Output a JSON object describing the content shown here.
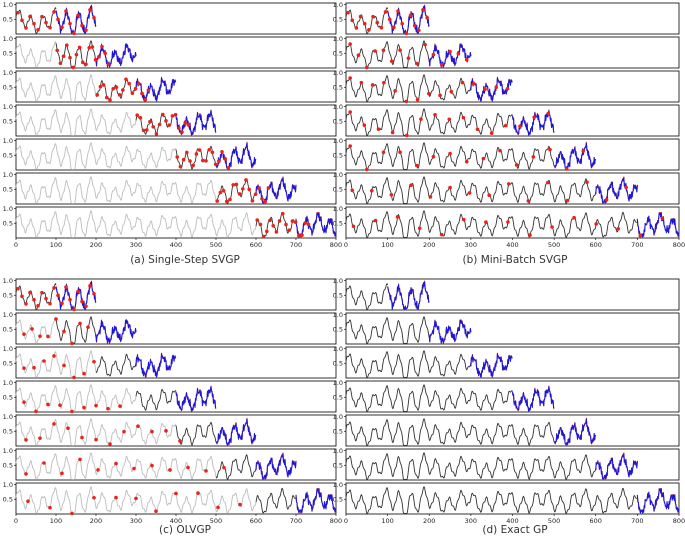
{
  "figure": {
    "captions": [
      "(a) Single-Step SVGP",
      "(b) Mini-Batch SVGP",
      "(c) OLVGP",
      "(d) Exact GP"
    ]
  },
  "colors": {
    "history": "#bdbdbd",
    "window": "#333333",
    "prediction": "#1a1adb",
    "inducing": "#e8231a",
    "frame": "#000000"
  },
  "chart_data": [
    {
      "type": "line",
      "title": "(a) Single-Step SVGP",
      "xticks": [
        "0",
        "100",
        "200",
        "300",
        "400",
        "500",
        "600",
        "700",
        "800"
      ],
      "yticks": [
        "0.5",
        "1.0"
      ],
      "xlim": [
        0,
        800
      ],
      "ylim": [
        0.0,
        1.05
      ],
      "grid": false,
      "series_legend": {
        "history": "light gray",
        "window": "dark gray",
        "prediction": "blue",
        "inducing": "red dots"
      },
      "rows": [
        {
          "shown_end": 200,
          "window_start": 0,
          "dots": [
            5,
            15,
            25,
            35,
            45,
            55,
            65,
            75,
            85,
            95,
            105,
            115,
            125,
            135,
            145,
            155,
            165,
            175,
            185,
            195
          ]
        },
        {
          "shown_end": 300,
          "window_start": 100,
          "dots": [
            103,
            111,
            119,
            127,
            135,
            143,
            151,
            159,
            167,
            175,
            183,
            191,
            199,
            207,
            215,
            223,
            231
          ]
        },
        {
          "shown_end": 400,
          "window_start": 200,
          "dots": [
            203,
            211,
            219,
            227,
            235,
            243,
            251,
            259,
            267,
            275,
            283,
            291,
            299,
            307,
            315,
            323,
            331
          ]
        },
        {
          "shown_end": 500,
          "window_start": 300,
          "dots": [
            303,
            311,
            319,
            327,
            335,
            343,
            351,
            359,
            367,
            375,
            383,
            391,
            399,
            407,
            415,
            423,
            431
          ]
        },
        {
          "shown_end": 600,
          "window_start": 400,
          "dots": [
            403,
            411,
            419,
            427,
            435,
            443,
            451,
            459,
            467,
            475,
            483,
            491,
            499,
            507,
            515,
            523,
            531
          ]
        },
        {
          "shown_end": 700,
          "window_start": 500,
          "dots": [
            503,
            511,
            519,
            527,
            535,
            543,
            551,
            559,
            567,
            575,
            583,
            591,
            599,
            607,
            615,
            623,
            631
          ]
        },
        {
          "shown_end": 800,
          "window_start": 600,
          "dots": [
            603,
            611,
            619,
            627,
            635,
            643,
            651,
            659,
            667,
            675,
            683,
            691,
            699,
            707,
            715,
            723,
            731
          ]
        }
      ]
    },
    {
      "type": "line",
      "title": "(b) Mini-Batch SVGP",
      "xticks": [
        "0",
        "100",
        "200",
        "300",
        "400",
        "500",
        "600",
        "700",
        "800"
      ],
      "yticks": [
        "0.5",
        "1.0"
      ],
      "xlim": [
        0,
        800
      ],
      "ylim": [
        0.0,
        1.05
      ],
      "grid": false,
      "rows": [
        {
          "shown_end": 200,
          "window_start": 0,
          "dots": [
            5,
            15,
            25,
            35,
            45,
            55,
            65,
            75,
            85,
            95,
            105,
            115,
            125,
            135,
            145,
            155,
            165,
            175,
            185,
            195
          ]
        },
        {
          "shown_end": 300,
          "window_start": 0,
          "dots": [
            10,
            30,
            50,
            70,
            90,
            110,
            130,
            150,
            170,
            190,
            210,
            230,
            250,
            270,
            290
          ]
        },
        {
          "shown_end": 400,
          "window_start": 0,
          "dots": [
            10,
            37,
            64,
            91,
            118,
            145,
            172,
            199,
            226,
            253,
            280,
            307,
            334,
            361,
            388
          ]
        },
        {
          "shown_end": 500,
          "window_start": 0,
          "dots": [
            10,
            44,
            78,
            112,
            146,
            180,
            214,
            248,
            282,
            316,
            350,
            384,
            418,
            452,
            486
          ]
        },
        {
          "shown_end": 600,
          "window_start": 0,
          "dots": [
            10,
            50,
            90,
            130,
            170,
            210,
            250,
            290,
            330,
            370,
            410,
            450,
            490,
            530,
            570
          ]
        },
        {
          "shown_end": 700,
          "window_start": 0,
          "dots": [
            15,
            62,
            109,
            156,
            203,
            250,
            297,
            344,
            391,
            438,
            485,
            532,
            579,
            626,
            673
          ]
        },
        {
          "shown_end": 800,
          "window_start": 0,
          "dots": [
            18,
            71,
            124,
            177,
            230,
            283,
            336,
            389,
            442,
            495,
            548,
            601,
            654,
            707,
            760
          ]
        }
      ]
    },
    {
      "type": "line",
      "title": "(c) OLVGP",
      "xticks": [
        "0",
        "100",
        "200",
        "300",
        "400",
        "500",
        "600",
        "700",
        "800"
      ],
      "yticks": [
        "0.5",
        "1.0"
      ],
      "xlim": [
        0,
        800
      ],
      "ylim": [
        0.0,
        1.05
      ],
      "grid": false,
      "rows": [
        {
          "shown_end": 200,
          "window_start": 0,
          "dots": [
            5,
            15,
            25,
            35,
            45,
            55,
            65,
            75,
            85,
            95,
            105,
            115,
            125,
            135,
            145,
            155,
            165,
            175,
            185,
            195
          ]
        },
        {
          "shown_end": 300,
          "window_start": 100,
          "dots": [
            20,
            40,
            60,
            80,
            100,
            120,
            140,
            160,
            180
          ]
        },
        {
          "shown_end": 400,
          "window_start": 200,
          "dots": [
            20,
            45,
            70,
            95,
            120,
            145,
            170,
            195
          ]
        },
        {
          "shown_end": 500,
          "window_start": 300,
          "dots": [
            20,
            50,
            80,
            110,
            140,
            170,
            200,
            230,
            260
          ]
        },
        {
          "shown_end": 600,
          "window_start": 400,
          "dots": [
            25,
            60,
            95,
            130,
            165,
            200,
            235,
            270,
            305,
            340,
            375,
            410
          ]
        },
        {
          "shown_end": 700,
          "window_start": 500,
          "dots": [
            25,
            70,
            115,
            160,
            205,
            250,
            295,
            340,
            385,
            430,
            475,
            520
          ]
        },
        {
          "shown_end": 800,
          "window_start": 600,
          "dots": [
            30,
            85,
            140,
            195,
            250,
            300,
            350,
            400,
            455,
            505,
            560
          ]
        }
      ]
    },
    {
      "type": "line",
      "title": "(d) Exact GP",
      "xticks": [
        "0",
        "100",
        "200",
        "300",
        "400",
        "500",
        "600",
        "700",
        "800"
      ],
      "yticks": [
        "0.5",
        "1.0"
      ],
      "xlim": [
        0,
        800
      ],
      "ylim": [
        0.0,
        1.05
      ],
      "grid": false,
      "rows": [
        {
          "shown_end": 200,
          "window_start": 0,
          "dots": []
        },
        {
          "shown_end": 300,
          "window_start": 0,
          "dots": []
        },
        {
          "shown_end": 400,
          "window_start": 0,
          "dots": []
        },
        {
          "shown_end": 500,
          "window_start": 0,
          "dots": []
        },
        {
          "shown_end": 600,
          "window_start": 0,
          "dots": []
        },
        {
          "shown_end": 700,
          "window_start": 0,
          "dots": []
        },
        {
          "shown_end": 800,
          "window_start": 0,
          "dots": []
        }
      ]
    }
  ]
}
